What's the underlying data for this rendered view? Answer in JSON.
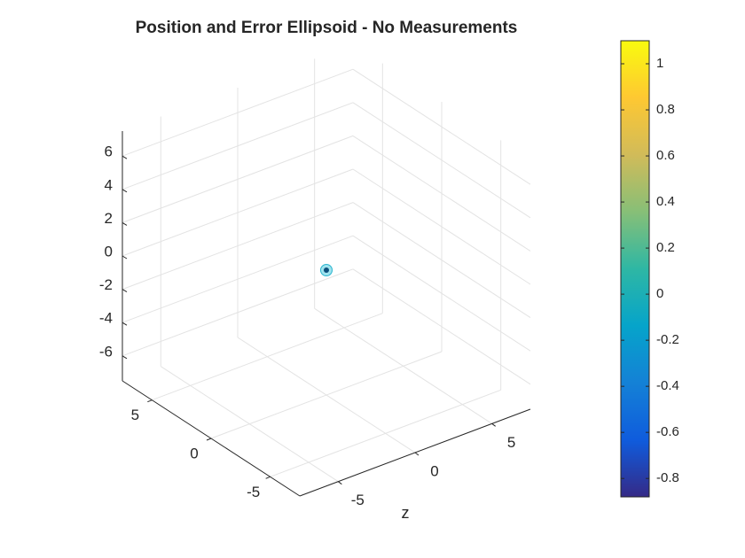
{
  "chart_data": {
    "type": "scatter3",
    "title": "Position and Error Ellipsoid - No Measurements",
    "xlabel": "z",
    "xlim": [
      -7.5,
      7.5
    ],
    "xticks": [
      -5,
      0,
      5
    ],
    "ylim": [
      -7.5,
      7.5
    ],
    "yticks": [
      -5,
      0,
      5
    ],
    "zlim": [
      -7.5,
      7.5
    ],
    "zticks": [
      -6,
      -4,
      -2,
      0,
      2,
      4,
      6
    ],
    "grid": true,
    "series": [
      {
        "color": "#0b4f7c",
        "x": [
          0
        ],
        "y": [
          0
        ],
        "z": [
          0
        ]
      }
    ],
    "colorbar": {
      "clim": [
        -0.88,
        1.1
      ],
      "ticks": [
        -0.8,
        -0.6,
        -0.4,
        -0.2,
        0,
        0.2,
        0.4,
        0.6,
        0.8,
        1
      ],
      "colormap": [
        "#352a87",
        "#0f5cdd",
        "#1481d6",
        "#06a4ca",
        "#2eb7a4",
        "#87bf77",
        "#d1bb59",
        "#fec832",
        "#f9fb0e"
      ]
    }
  }
}
